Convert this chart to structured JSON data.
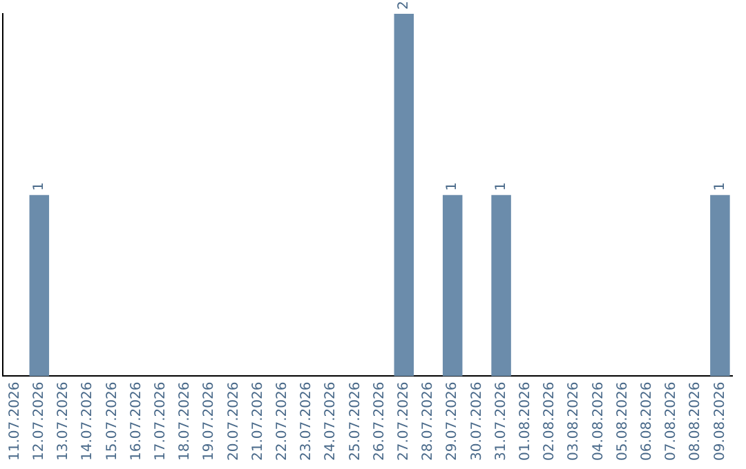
{
  "chart_data": {
    "type": "bar",
    "categories": [
      "11.07.2026",
      "12.07.2026",
      "13.07.2026",
      "14.07.2026",
      "15.07.2026",
      "16.07.2026",
      "17.07.2026",
      "18.07.2026",
      "19.07.2026",
      "20.07.2026",
      "21.07.2026",
      "22.07.2026",
      "23.07.2026",
      "24.07.2026",
      "25.07.2026",
      "26.07.2026",
      "27.07.2026",
      "28.07.2026",
      "29.07.2026",
      "30.07.2026",
      "31.07.2026",
      "01.08.2026",
      "02.08.2026",
      "03.08.2026",
      "04.08.2026",
      "05.08.2026",
      "06.08.2026",
      "07.08.2026",
      "08.08.2026",
      "09.08.2026"
    ],
    "values": [
      null,
      1,
      null,
      null,
      null,
      null,
      null,
      null,
      null,
      null,
      null,
      null,
      null,
      null,
      null,
      null,
      2,
      null,
      1,
      null,
      1,
      null,
      null,
      null,
      null,
      null,
      null,
      null,
      null,
      1
    ],
    "color": "#6b8cab",
    "ylim": [
      0,
      2
    ],
    "tick_labels": "x",
    "grid": false,
    "legend": false,
    "data_labels": true
  }
}
